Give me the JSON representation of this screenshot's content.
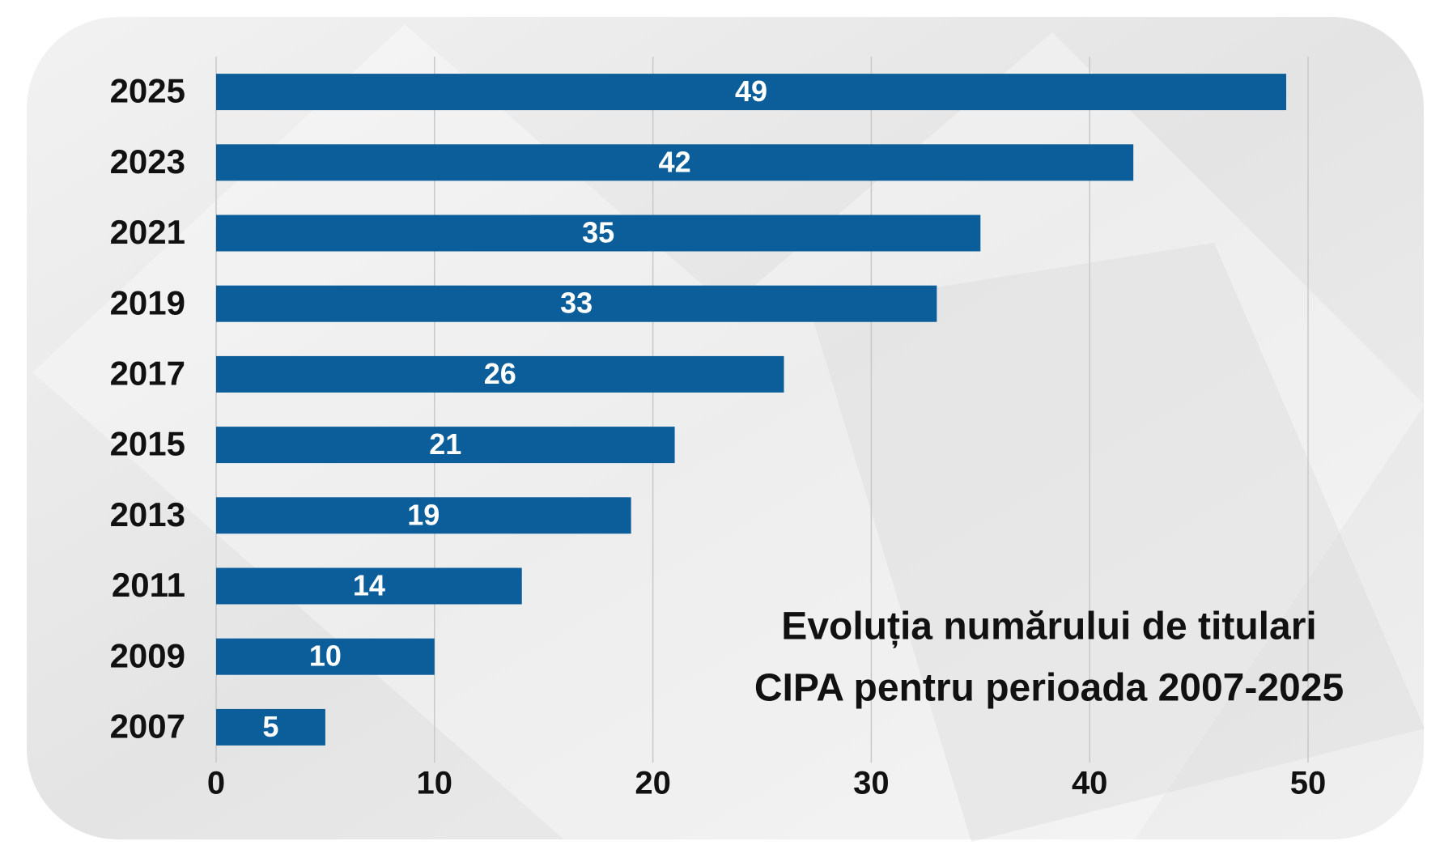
{
  "chart_data": {
    "type": "bar",
    "orientation": "horizontal",
    "title": [
      "Evoluția numărului de  titulari",
      "CIPA pentru perioada 2007-2025"
    ],
    "categories": [
      "2025",
      "2023",
      "2021",
      "2019",
      "2017",
      "2015",
      "2013",
      "2011",
      "2009",
      "2007"
    ],
    "values": [
      49,
      42,
      35,
      33,
      26,
      21,
      19,
      14,
      10,
      5
    ],
    "color": "#0b5e9a",
    "xlim": [
      0,
      50
    ],
    "xticks": [
      0,
      10,
      20,
      30,
      40,
      50
    ],
    "grid": true
  }
}
